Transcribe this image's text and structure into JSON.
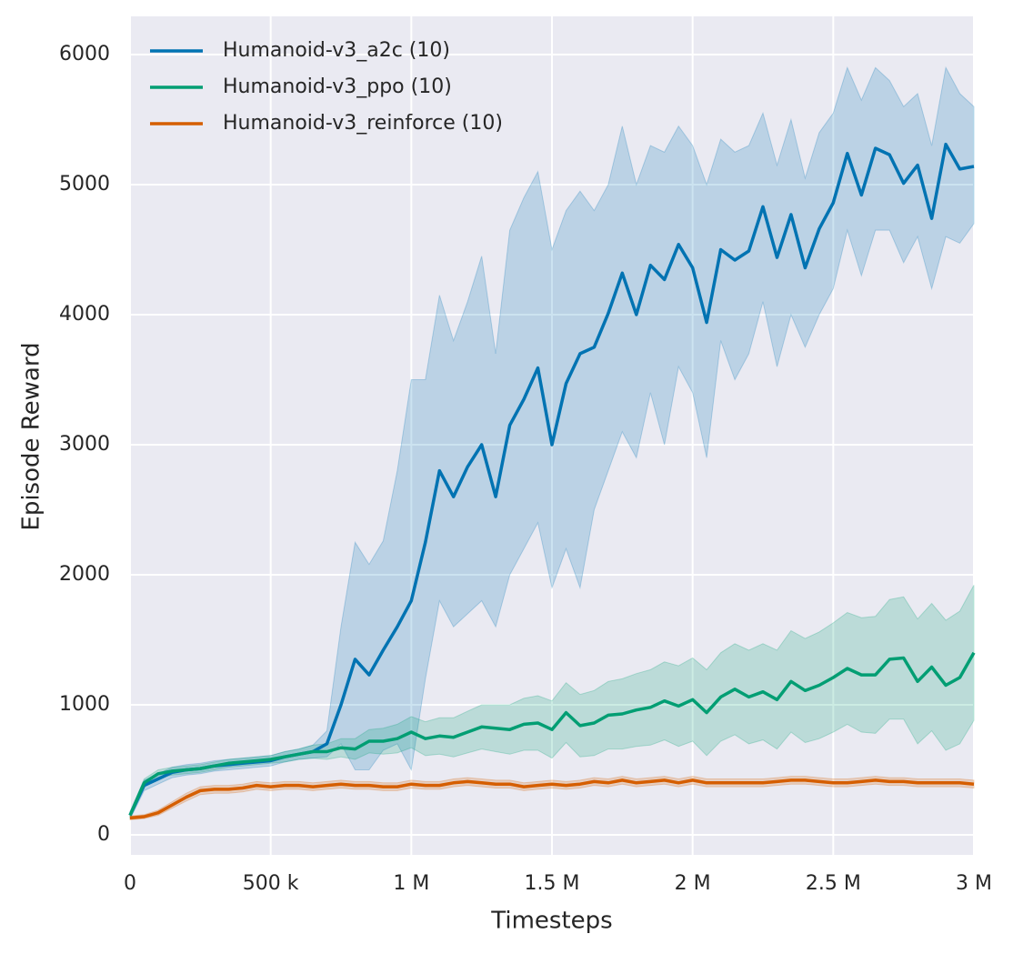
{
  "chart_data": {
    "type": "line",
    "xlabel": "Timesteps",
    "ylabel": "Episode Reward",
    "xlim": [
      0,
      3000000
    ],
    "ylim": [
      -154,
      6294
    ],
    "xticks": [
      {
        "value": 0,
        "label": "0"
      },
      {
        "value": 500000,
        "label": "500 k"
      },
      {
        "value": 1000000,
        "label": "1 M"
      },
      {
        "value": 1500000,
        "label": "1.5 M"
      },
      {
        "value": 2000000,
        "label": "2 M"
      },
      {
        "value": 2500000,
        "label": "2.5 M"
      },
      {
        "value": 3000000,
        "label": "3 M"
      }
    ],
    "yticks": [
      0,
      1000,
      2000,
      3000,
      4000,
      5000,
      6000
    ],
    "grid": true,
    "legend": "upper left",
    "x": [
      0,
      50000,
      100000,
      150000,
      200000,
      250000,
      300000,
      350000,
      400000,
      450000,
      500000,
      550000,
      600000,
      650000,
      700000,
      750000,
      800000,
      850000,
      900000,
      950000,
      1000000,
      1050000,
      1100000,
      1150000,
      1200000,
      1250000,
      1300000,
      1350000,
      1400000,
      1450000,
      1500000,
      1550000,
      1600000,
      1650000,
      1700000,
      1750000,
      1800000,
      1850000,
      1900000,
      1950000,
      2000000,
      2050000,
      2100000,
      2150000,
      2200000,
      2250000,
      2300000,
      2350000,
      2400000,
      2450000,
      2500000,
      2550000,
      2600000,
      2650000,
      2700000,
      2750000,
      2800000,
      2850000,
      2900000,
      2950000,
      3000000
    ],
    "series": [
      {
        "name": "Humanoid-v3_a2c (10)",
        "color": "#0173b2",
        "values": [
          150,
          380,
          430,
          480,
          500,
          510,
          530,
          540,
          550,
          560,
          570,
          600,
          620,
          640,
          700,
          1000,
          1350,
          1230,
          1420,
          1600,
          1800,
          2250,
          2800,
          2600,
          2830,
          3000,
          2600,
          3150,
          3350,
          3590,
          3000,
          3470,
          3700,
          3750,
          4010,
          4320,
          4000,
          4380,
          4270,
          4540,
          4360,
          3940,
          4500,
          4420,
          4490,
          4830,
          4440,
          4770,
          4360,
          4660,
          4860,
          5240,
          4920,
          5280,
          5230,
          5010,
          5150,
          4740,
          5310,
          5120,
          5140
        ],
        "lower": [
          120,
          340,
          390,
          440,
          460,
          470,
          490,
          500,
          510,
          520,
          530,
          560,
          580,
          590,
          600,
          700,
          500,
          500,
          650,
          700,
          500,
          1200,
          1800,
          1600,
          1700,
          1800,
          1600,
          2000,
          2200,
          2400,
          1900,
          2200,
          1900,
          2500,
          2800,
          3100,
          2900,
          3400,
          3000,
          3600,
          3400,
          2900,
          3800,
          3500,
          3700,
          4100,
          3600,
          4000,
          3750,
          4000,
          4200,
          4650,
          4300,
          4650,
          4650,
          4400,
          4600,
          4200,
          4600,
          4550,
          4700
        ],
        "upper": [
          180,
          420,
          470,
          520,
          540,
          550,
          570,
          580,
          590,
          600,
          610,
          640,
          660,
          690,
          800,
          1600,
          2250,
          2080,
          2260,
          2800,
          3500,
          3500,
          4150,
          3800,
          4100,
          4450,
          3700,
          4650,
          4900,
          5100,
          4500,
          4800,
          4950,
          4800,
          5000,
          5450,
          5000,
          5300,
          5250,
          5450,
          5300,
          5000,
          5350,
          5250,
          5300,
          5550,
          5150,
          5500,
          5050,
          5400,
          5550,
          5900,
          5650,
          5900,
          5800,
          5600,
          5700,
          5300,
          5900,
          5700,
          5600
        ]
      },
      {
        "name": "Humanoid-v3_ppo (10)",
        "color": "#029e73",
        "values": [
          150,
          400,
          470,
          490,
          500,
          510,
          530,
          550,
          560,
          570,
          580,
          600,
          620,
          640,
          640,
          670,
          660,
          720,
          720,
          740,
          790,
          740,
          760,
          750,
          790,
          830,
          820,
          810,
          850,
          860,
          810,
          940,
          840,
          860,
          920,
          930,
          960,
          980,
          1030,
          990,
          1040,
          940,
          1060,
          1120,
          1060,
          1100,
          1040,
          1180,
          1110,
          1150,
          1210,
          1280,
          1230,
          1230,
          1350,
          1360,
          1180,
          1290,
          1150,
          1210,
          1400
        ],
        "lower": [
          130,
          370,
          440,
          460,
          470,
          480,
          500,
          520,
          530,
          540,
          550,
          560,
          580,
          590,
          580,
          600,
          580,
          630,
          620,
          630,
          670,
          610,
          620,
          600,
          630,
          660,
          640,
          620,
          650,
          650,
          590,
          710,
          600,
          610,
          660,
          660,
          680,
          690,
          730,
          680,
          720,
          610,
          720,
          770,
          700,
          730,
          660,
          790,
          710,
          740,
          790,
          850,
          790,
          780,
          890,
          890,
          700,
          800,
          650,
          700,
          880
        ],
        "upper": [
          170,
          430,
          500,
          520,
          530,
          540,
          560,
          580,
          590,
          600,
          610,
          640,
          660,
          690,
          700,
          740,
          740,
          810,
          820,
          850,
          910,
          870,
          900,
          900,
          950,
          1000,
          1000,
          1000,
          1050,
          1070,
          1030,
          1170,
          1080,
          1110,
          1180,
          1200,
          1240,
          1270,
          1330,
          1300,
          1360,
          1270,
          1400,
          1470,
          1420,
          1470,
          1420,
          1570,
          1510,
          1560,
          1630,
          1710,
          1670,
          1680,
          1810,
          1830,
          1660,
          1780,
          1650,
          1720,
          1920
        ]
      },
      {
        "name": "Humanoid-v3_reinforce (10)",
        "color": "#d55e00",
        "values": [
          130,
          140,
          170,
          230,
          290,
          340,
          350,
          350,
          360,
          380,
          370,
          380,
          380,
          370,
          380,
          390,
          380,
          380,
          370,
          370,
          390,
          380,
          380,
          400,
          410,
          400,
          390,
          390,
          370,
          380,
          390,
          380,
          390,
          410,
          400,
          420,
          400,
          410,
          420,
          400,
          420,
          400,
          400,
          400,
          400,
          400,
          410,
          420,
          420,
          410,
          400,
          400,
          410,
          420,
          410,
          410,
          400,
          400,
          400,
          400,
          390
        ],
        "lower": [
          115,
          125,
          150,
          205,
          260,
          310,
          320,
          320,
          330,
          350,
          340,
          350,
          350,
          340,
          350,
          360,
          350,
          350,
          340,
          340,
          360,
          350,
          350,
          370,
          380,
          370,
          360,
          360,
          340,
          350,
          360,
          350,
          360,
          380,
          370,
          390,
          370,
          380,
          390,
          370,
          390,
          370,
          370,
          370,
          370,
          370,
          380,
          390,
          390,
          380,
          370,
          370,
          380,
          390,
          380,
          380,
          370,
          370,
          370,
          370,
          360
        ],
        "upper": [
          145,
          155,
          190,
          255,
          320,
          370,
          380,
          380,
          390,
          410,
          400,
          410,
          410,
          400,
          410,
          420,
          410,
          410,
          400,
          400,
          420,
          410,
          410,
          430,
          440,
          430,
          420,
          420,
          400,
          410,
          420,
          410,
          420,
          440,
          430,
          450,
          430,
          440,
          450,
          430,
          450,
          430,
          430,
          430,
          430,
          430,
          440,
          450,
          450,
          440,
          430,
          430,
          440,
          450,
          440,
          440,
          430,
          430,
          430,
          430,
          420
        ]
      }
    ]
  }
}
